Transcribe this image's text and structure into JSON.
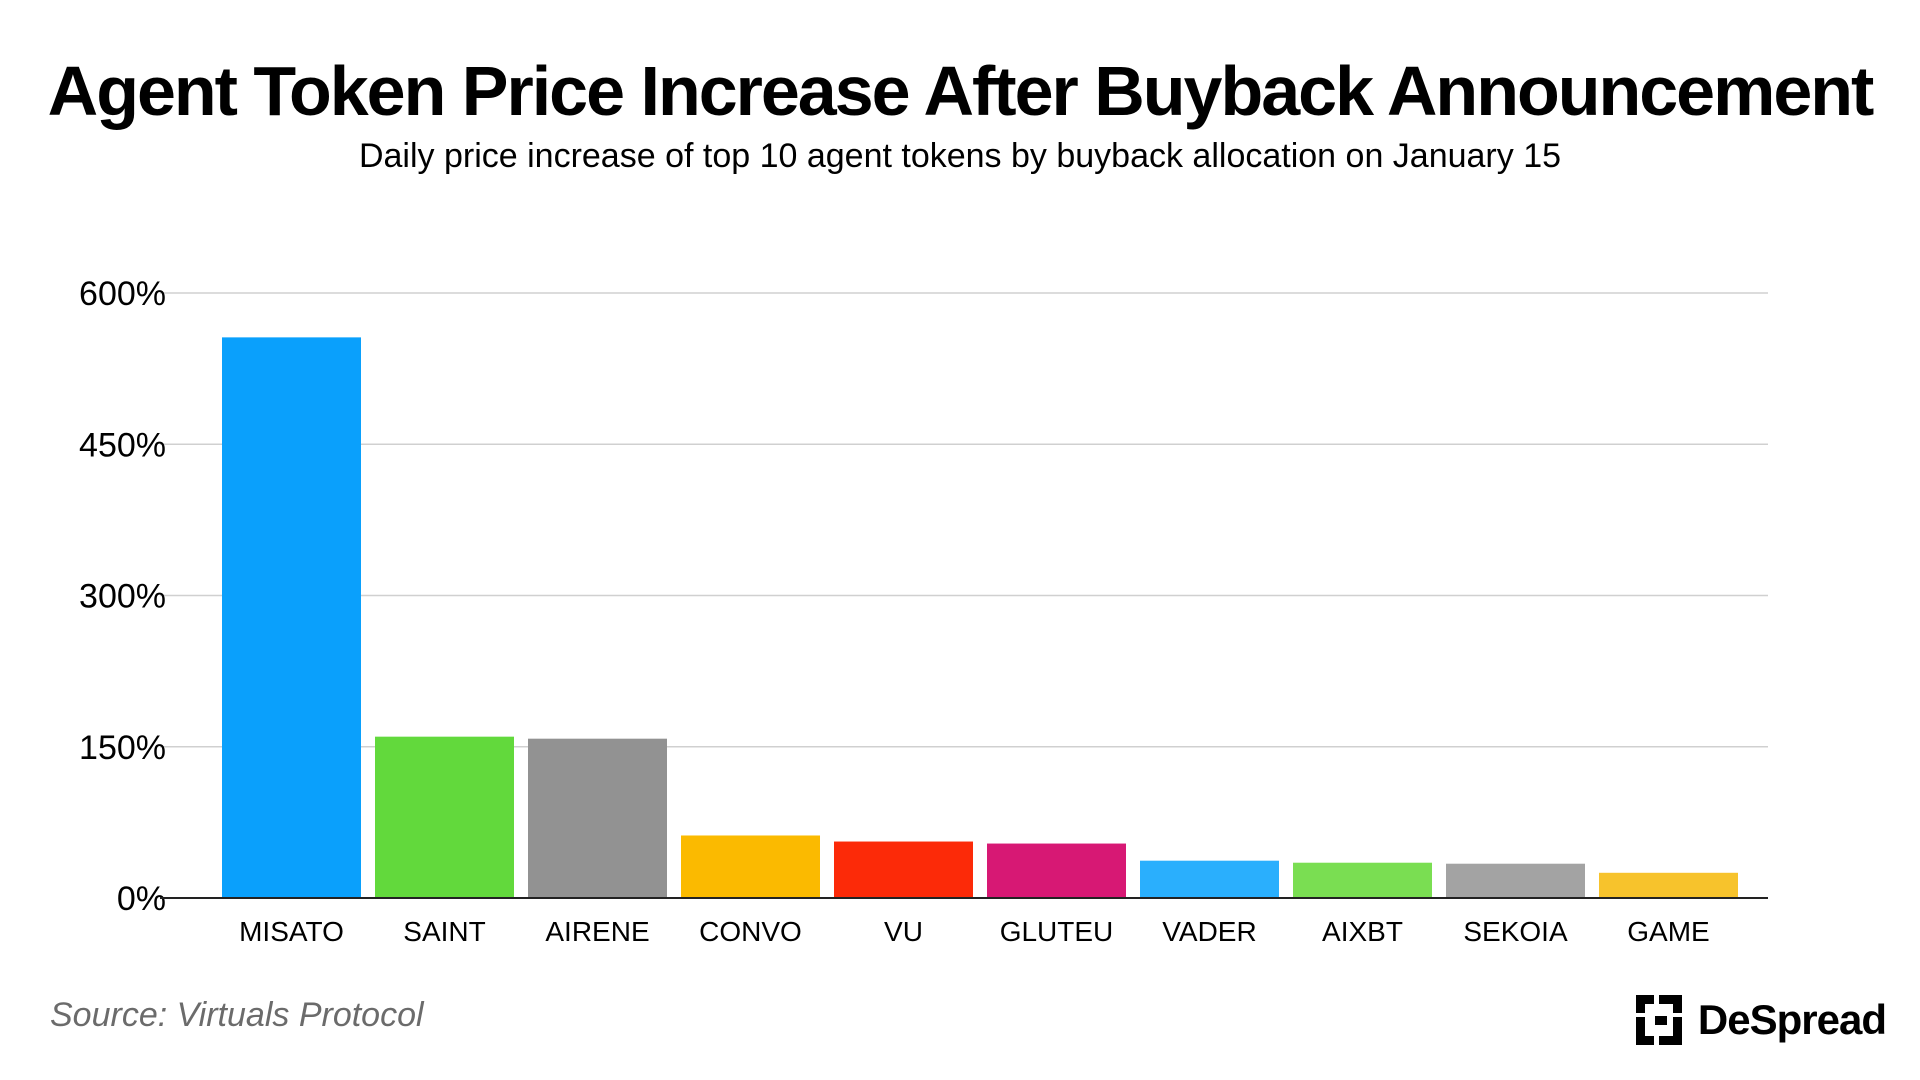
{
  "header": {
    "title": "Agent Token Price Increase After Buyback Announcement",
    "subtitle": "Daily price increase of top 10 agent tokens by buyback allocation on January 15"
  },
  "footer": {
    "source": "Source: Virtuals Protocol",
    "brand": "DeSpread"
  },
  "chart_data": {
    "type": "bar",
    "title": "Agent Token Price Increase After Buyback Announcement",
    "subtitle": "Daily price increase of top 10 agent tokens by buyback allocation on January 15",
    "categories": [
      "MISATO",
      "SAINT",
      "AIRENE",
      "CONVO",
      "VU",
      "GLUTEU",
      "VADER",
      "AIXBT",
      "SEKOIA",
      "GAME"
    ],
    "values": [
      556,
      160,
      158,
      62,
      56,
      54,
      37,
      35,
      34,
      25
    ],
    "colors": [
      "#0aa0fc",
      "#62d93c",
      "#929292",
      "#fbba00",
      "#fc2a08",
      "#d71874",
      "#2aaffd",
      "#7ade52",
      "#a3a3a3",
      "#f7c32c"
    ],
    "value_unit": "%",
    "ylim": [
      0,
      600
    ],
    "yticks": [
      0,
      150,
      300,
      450,
      600
    ],
    "ytick_labels": [
      "0%",
      "150%",
      "300%",
      "450%",
      "600%"
    ],
    "xlabel": "",
    "ylabel": "",
    "grid": true,
    "legend": "none"
  }
}
